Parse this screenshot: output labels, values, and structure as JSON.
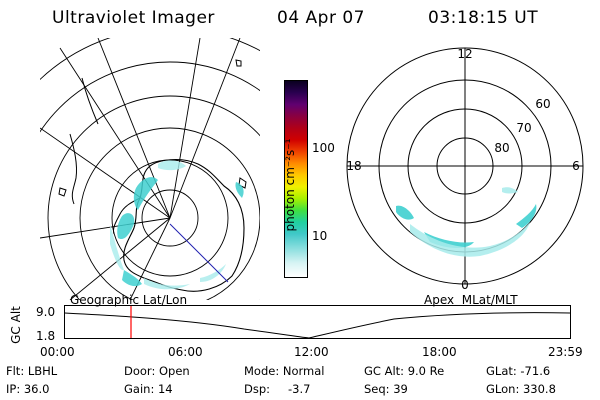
{
  "header": {
    "title": "Ultraviolet Imager",
    "date": "04 Apr 07",
    "time": "03:18:15 UT"
  },
  "colorbar": {
    "label": "photon cm⁻²s⁻¹",
    "ticks": [
      "100",
      "10"
    ],
    "colors": [
      "#0a0020",
      "#2a0050",
      "#600070",
      "#8a0040",
      "#b00018",
      "#d00000",
      "#ef4000",
      "#ff8a00",
      "#ffc800",
      "#f0f000",
      "#a8f000",
      "#40e040",
      "#20d0a0",
      "#40c8c8",
      "#90e0e0",
      "#d8f4f4",
      "#ffffff"
    ]
  },
  "geo_map": {
    "label": "Geographic Lat/Lon"
  },
  "apex_map": {
    "label": "Apex  MLat/MLT",
    "mlt_labels": {
      "top": "12",
      "left": "18",
      "right": "6",
      "bottom": "0"
    },
    "lat_labels": [
      "60",
      "70",
      "80"
    ]
  },
  "timeline": {
    "axis_title": "GC Alt",
    "y_labels": [
      "9.0",
      "1.8"
    ],
    "x_labels": [
      "00:00",
      "06:00",
      "12:00",
      "18:00",
      "23:59"
    ],
    "marker_time": "03:18"
  },
  "info": {
    "row1": {
      "flt": "Flt: LBHL",
      "door": "Door: Open",
      "mode": "Mode: Normal",
      "gcalt": "GC Alt: 9.0 Re",
      "glat": "GLat: -71.6"
    },
    "row2": {
      "ip": "IP: 36.0",
      "gain": "Gain: 14",
      "dsp_label": "Dsp:",
      "dsp_value": "-3.7",
      "seq": "Seq: 39",
      "glon": "GLon: 330.8"
    }
  },
  "colors": {
    "aurora": "#40d0d0",
    "aurora_light": "#a8ecec",
    "marker": "#ff0000",
    "orbit_line": "#2020b0"
  }
}
